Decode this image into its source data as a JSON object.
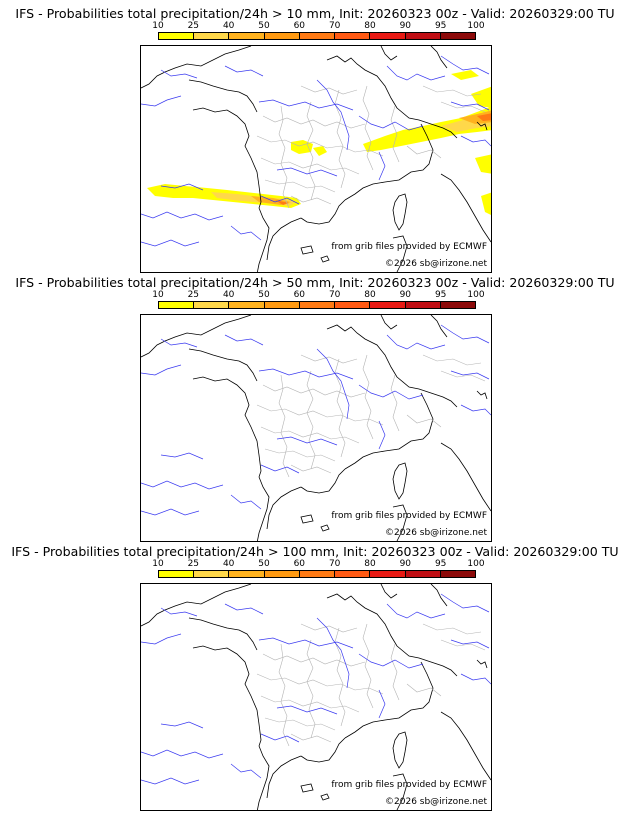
{
  "legend": {
    "ticks": [
      "10",
      "25",
      "40",
      "50",
      "60",
      "70",
      "80",
      "90",
      "95",
      "100"
    ],
    "colors": [
      "#ffff00",
      "#ffd84a",
      "#ffb21e",
      "#ff9a12",
      "#ff7a14",
      "#ff5a14",
      "#e81a14",
      "#c00e14",
      "#8c0a0a",
      "#4a0000"
    ]
  },
  "panels": [
    {
      "title": "IFS - Probabilities total precipitation/24h > 10 mm, Init: 20260323 00z - Valid: 20260329:00 TU",
      "source_note": "from grib files provided by ECMWF",
      "copyright": "©2026 sb@irizone.net"
    },
    {
      "title": "IFS - Probabilities total precipitation/24h > 50 mm, Init: 20260323 00z - Valid: 20260329:00 TU",
      "source_note": "from grib files provided by ECMWF",
      "copyright": "©2026 sb@irizone.net"
    },
    {
      "title": "IFS - Probabilities total precipitation/24h > 100 mm, Init: 20260323 00z - Valid: 20260329:00 TU",
      "source_note": "from grib files provided by ECMWF",
      "copyright": "©2026 sb@irizone.net"
    }
  ]
}
